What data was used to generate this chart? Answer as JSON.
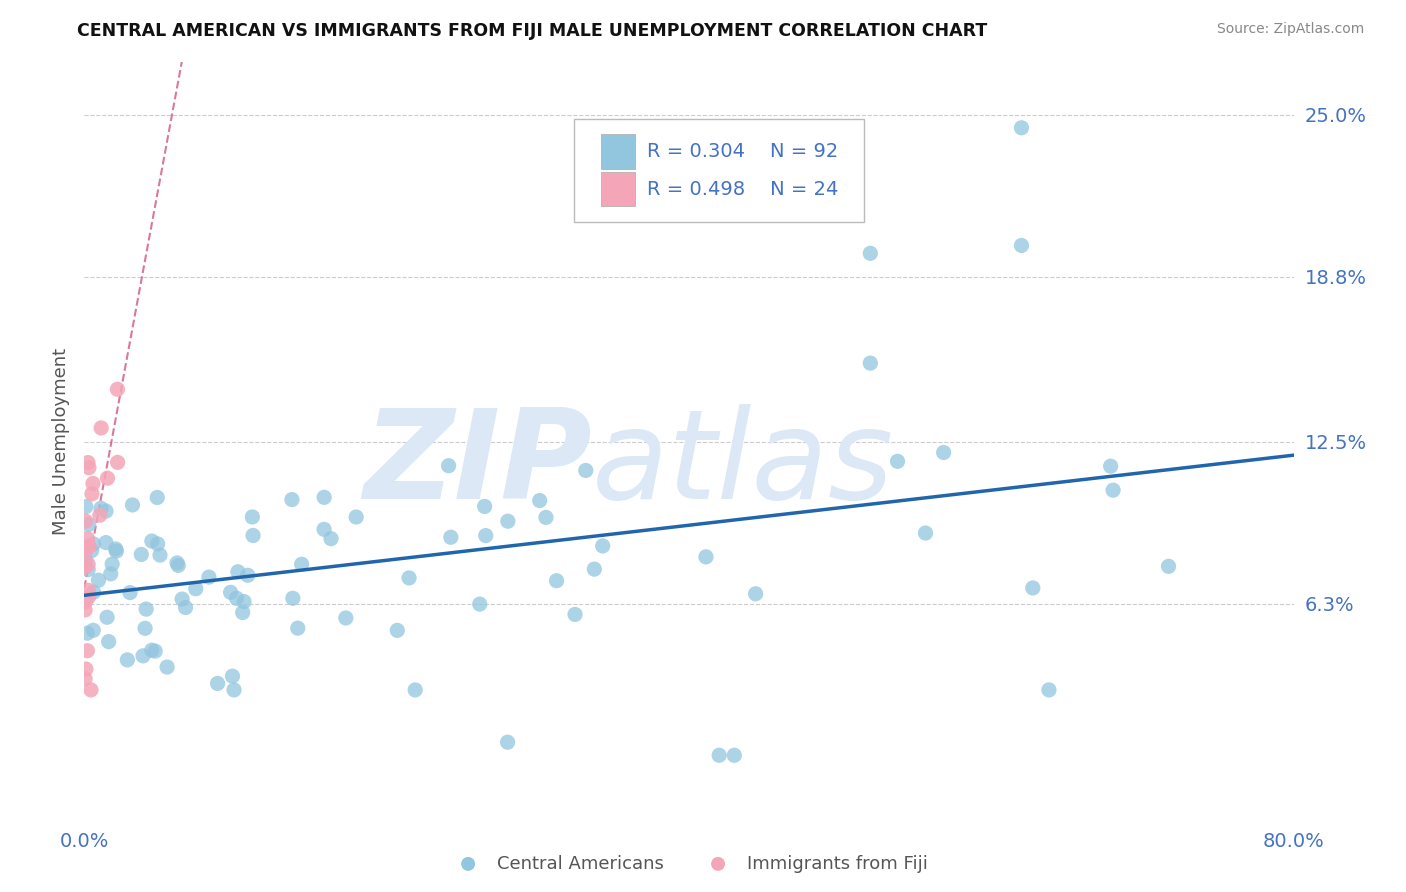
{
  "title": "CENTRAL AMERICAN VS IMMIGRANTS FROM FIJI MALE UNEMPLOYMENT CORRELATION CHART",
  "source": "Source: ZipAtlas.com",
  "ylabel": "Male Unemployment",
  "xlim": [
    0.0,
    0.8
  ],
  "ylim": [
    -0.02,
    0.27
  ],
  "yticks": [
    0.063,
    0.125,
    0.188,
    0.25
  ],
  "ytick_labels": [
    "6.3%",
    "12.5%",
    "18.8%",
    "25.0%"
  ],
  "xticks": [
    0.0,
    0.1,
    0.2,
    0.3,
    0.4,
    0.5,
    0.6,
    0.7,
    0.8
  ],
  "xtick_labels": [
    "0.0%",
    "",
    "",
    "",
    "",
    "",
    "",
    "",
    "80.0%"
  ],
  "color_blue": "#92c5de",
  "color_pink": "#f4a6b8",
  "color_trend_blue": "#2166ac",
  "color_trend_pink": "#c94070",
  "color_axis_label": "#4472C4",
  "watermark_text1": "ZIP",
  "watermark_text2": "atlas",
  "watermark_color": "#dce8f5",
  "background_color": "#ffffff",
  "grid_color": "#cccccc"
}
